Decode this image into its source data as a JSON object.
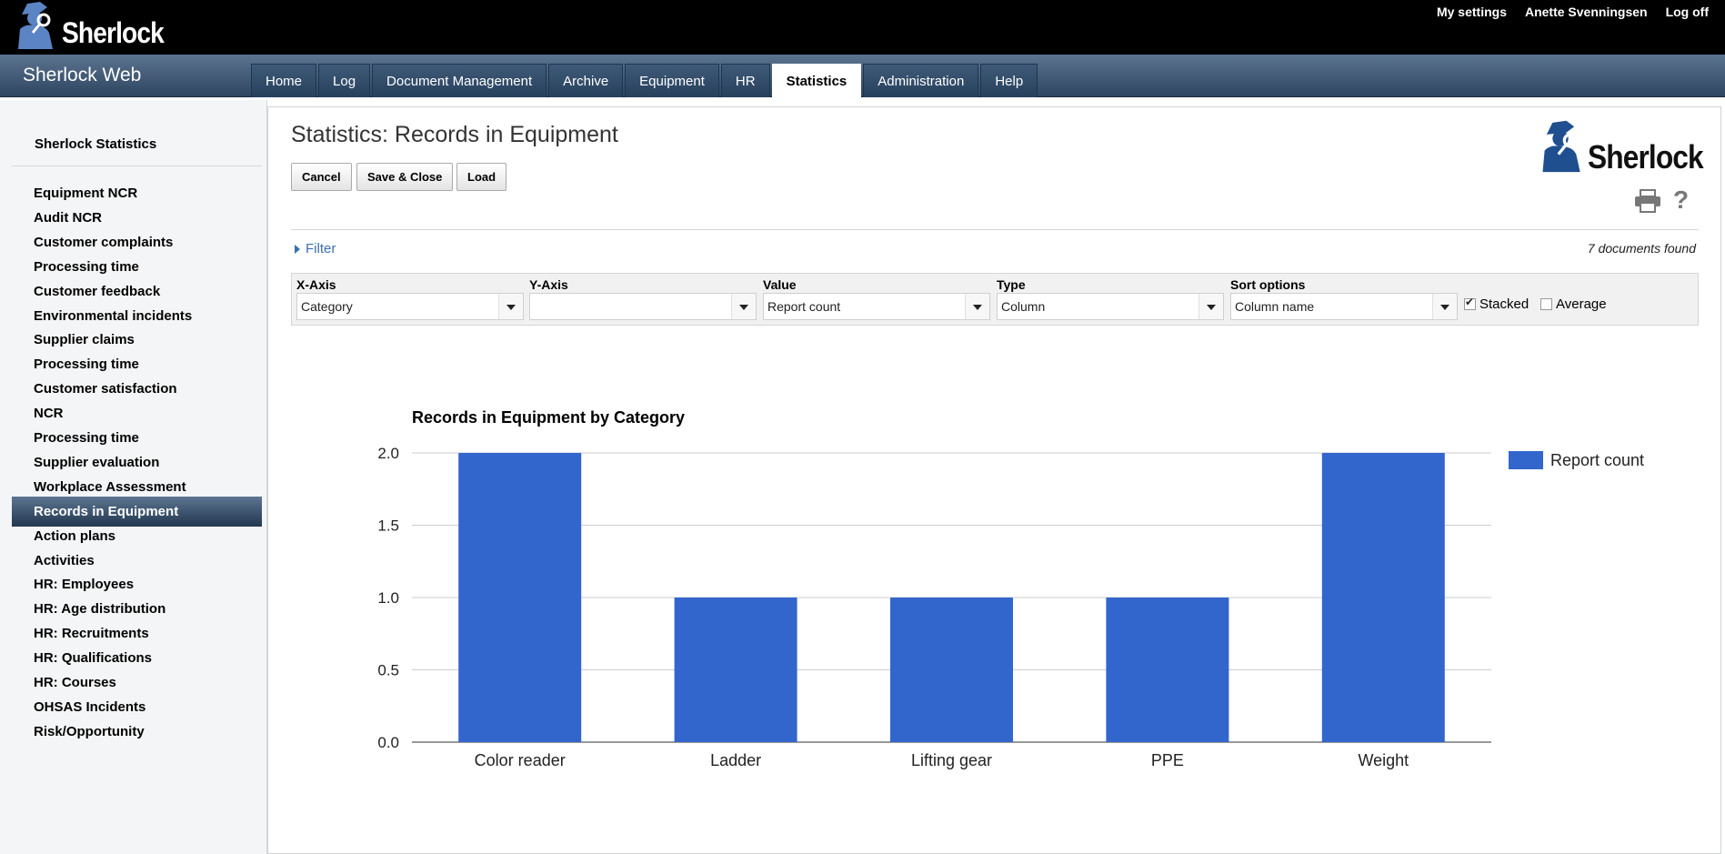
{
  "header": {
    "brand": "Sherlock",
    "links": [
      "My settings",
      "Anette Svenningsen",
      "Log off"
    ]
  },
  "nav": {
    "app_title": "Sherlock Web",
    "tabs": [
      "Home",
      "Log",
      "Document Management",
      "Archive",
      "Equipment",
      "HR",
      "Statistics",
      "Administration",
      "Help"
    ],
    "active_tab": "Statistics"
  },
  "sidebar": {
    "title": "Sherlock Statistics",
    "items": [
      "Equipment NCR",
      "Audit NCR",
      "Customer complaints",
      "Processing time",
      "Customer feedback",
      "Environmental incidents",
      "Supplier claims",
      "Processing time",
      "Customer satisfaction",
      "NCR",
      "Processing time",
      "Supplier evaluation",
      "Workplace Assessment",
      "Records in Equipment",
      "Action plans",
      "Activities",
      "HR: Employees",
      "HR: Age distribution",
      "HR: Recruitments",
      "HR: Qualifications",
      "HR: Courses",
      "OHSAS Incidents",
      "Risk/Opportunity"
    ],
    "active_item": "Records in Equipment"
  },
  "main": {
    "title": "Statistics: Records in Equipment",
    "buttons": {
      "cancel": "Cancel",
      "save_close": "Save & Close",
      "load": "Load"
    },
    "logo_text": "Sherlock",
    "filter_label": "Filter",
    "doc_count": "7 documents found",
    "options": {
      "x_axis": {
        "label": "X-Axis",
        "value": "Category"
      },
      "y_axis": {
        "label": "Y-Axis",
        "value": ""
      },
      "value": {
        "label": "Value",
        "value": "Report count"
      },
      "type": {
        "label": "Type",
        "value": "Column"
      },
      "sort": {
        "label": "Sort options",
        "value": "Column name"
      },
      "stacked": {
        "label": "Stacked",
        "checked": true
      },
      "average": {
        "label": "Average",
        "checked": false
      }
    }
  },
  "chart_data": {
    "type": "bar",
    "title": "Records in Equipment by Category",
    "categories": [
      "Color reader",
      "Ladder",
      "Lifting gear",
      "PPE",
      "Weight"
    ],
    "series": [
      {
        "name": "Report count",
        "values": [
          2,
          1,
          1,
          1,
          2
        ],
        "color": "#3366cc"
      }
    ],
    "ylim": [
      0,
      2
    ],
    "yticks": [
      "0.0",
      "0.5",
      "1.0",
      "1.5",
      "2.0"
    ],
    "grid": true,
    "legend": "right"
  }
}
